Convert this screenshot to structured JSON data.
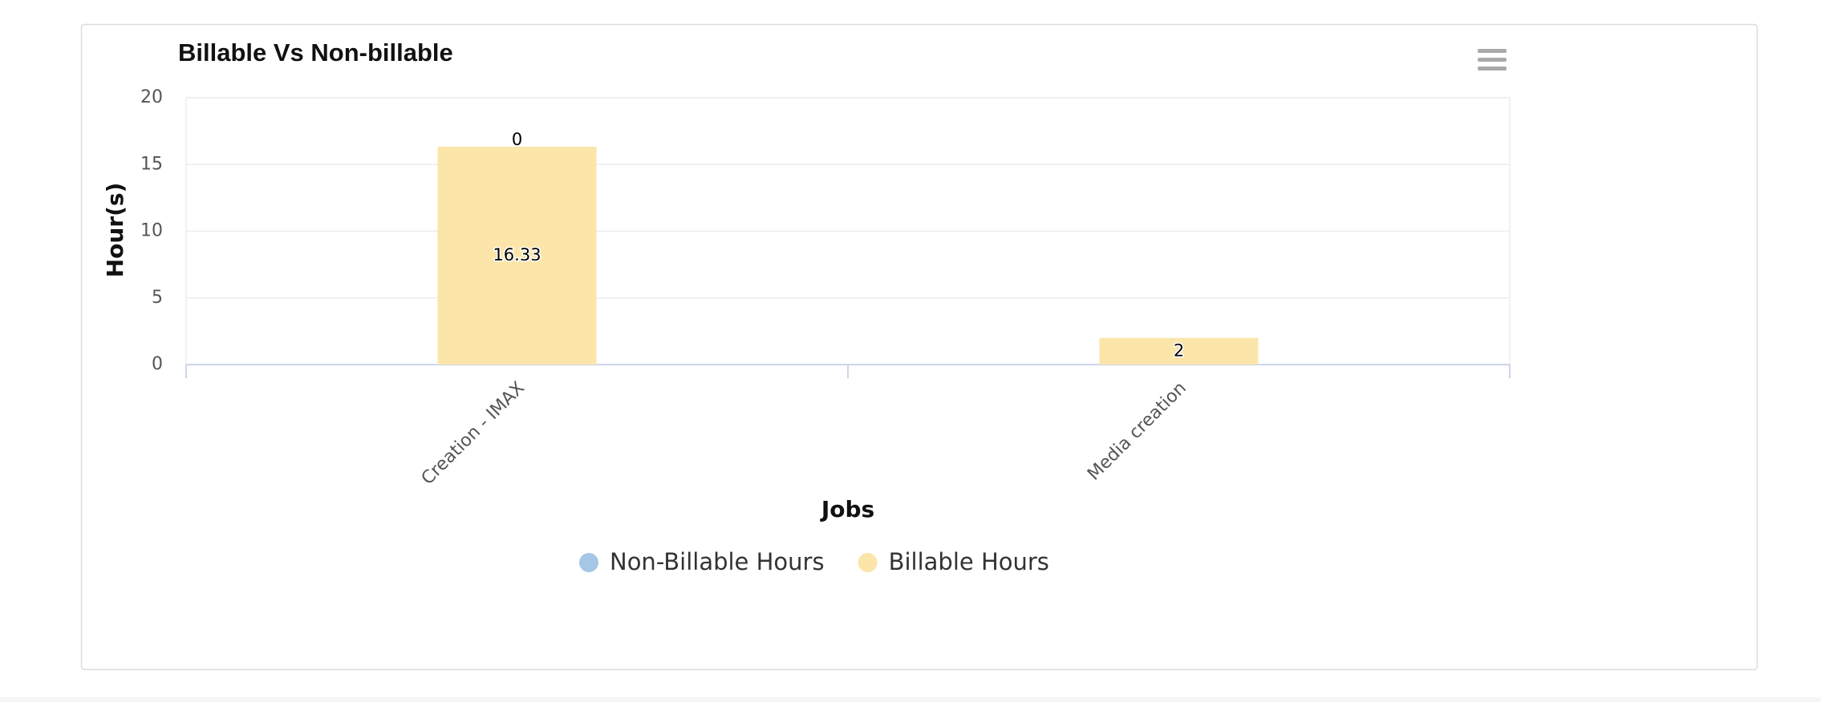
{
  "chart_data": {
    "type": "stacked-bar",
    "title": "Billable Vs Non-billable",
    "x_label": "Jobs",
    "y_label": "Hour(s)",
    "categories": [
      "Creation - IMAX",
      "Media creation"
    ],
    "series": [
      {
        "name": "Non-Billable Hours",
        "color": "#a6c6e5",
        "values": [
          0,
          null
        ]
      },
      {
        "name": "Billable Hours",
        "color": "#fbe5a9",
        "values": [
          16.33,
          2
        ]
      }
    ],
    "ylim": [
      0,
      20
    ],
    "yticks": [
      0,
      5,
      10,
      15,
      20
    ],
    "grid": true
  }
}
